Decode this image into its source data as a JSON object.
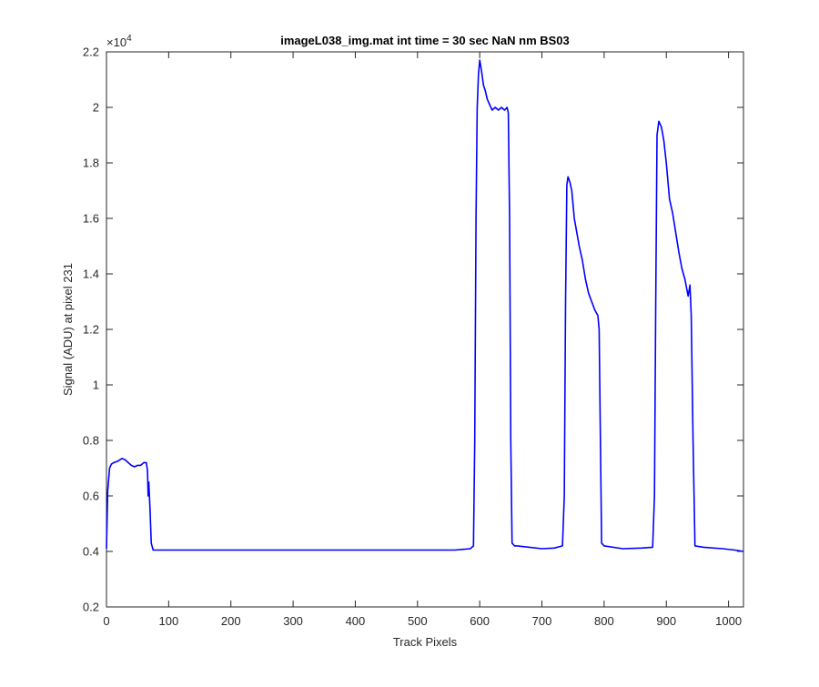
{
  "chart_data": {
    "type": "line",
    "title": "imageL038_img.mat int time = 30 sec  NaN nm BS03",
    "xlabel": "Track Pixels",
    "ylabel": "Signal (ADU) at pixel 231",
    "y_exponent_label": "×10",
    "y_exponent": "4",
    "xlim": [
      0,
      1024
    ],
    "ylim": [
      0.2,
      2.2
    ],
    "x_ticks": [
      0,
      100,
      200,
      300,
      400,
      500,
      600,
      700,
      800,
      900,
      1000
    ],
    "x_tick_labels": [
      "0",
      "100",
      "200",
      "300",
      "400",
      "500",
      "600",
      "700",
      "800",
      "900",
      "1000"
    ],
    "y_ticks": [
      0.2,
      0.4,
      0.6,
      0.8,
      1.0,
      1.2,
      1.4,
      1.6,
      1.8,
      2.0,
      2.2
    ],
    "y_tick_labels": [
      "0.2",
      "0.4",
      "0.6",
      "0.8",
      "1",
      "1.2",
      "1.4",
      "1.6",
      "1.8",
      "2",
      "2.2"
    ],
    "grid": false,
    "line_color": "#0000ff",
    "series": [
      {
        "x": [
          0,
          2,
          5,
          8,
          12,
          18,
          25,
          30,
          35,
          40,
          45,
          50,
          55,
          60,
          64,
          66,
          67,
          68,
          70,
          72,
          75,
          100,
          200,
          300,
          400,
          500,
          560,
          585,
          590,
          592,
          594,
          596,
          598,
          600,
          603,
          606,
          609,
          612,
          616,
          620,
          625,
          630,
          635,
          640,
          644,
          646,
          648,
          650,
          652,
          654,
          656,
          660,
          680,
          700,
          720,
          733,
          736,
          738,
          740,
          742,
          745,
          748,
          752,
          756,
          760,
          765,
          770,
          775,
          780,
          785,
          790,
          792,
          794,
          796,
          800,
          830,
          860,
          878,
          881,
          883,
          885,
          888,
          892,
          896,
          900,
          905,
          910,
          915,
          920,
          925,
          930,
          935,
          938,
          940,
          943,
          946,
          960,
          990,
          1010,
          1024
        ],
        "y": [
          0.41,
          0.62,
          0.7,
          0.715,
          0.72,
          0.725,
          0.735,
          0.73,
          0.72,
          0.71,
          0.705,
          0.71,
          0.71,
          0.72,
          0.72,
          0.69,
          0.6,
          0.65,
          0.55,
          0.43,
          0.405,
          0.405,
          0.405,
          0.405,
          0.405,
          0.405,
          0.405,
          0.41,
          0.42,
          0.8,
          1.6,
          2.0,
          2.12,
          2.17,
          2.13,
          2.08,
          2.06,
          2.03,
          2.01,
          1.99,
          2.0,
          1.99,
          2.0,
          1.99,
          2.0,
          1.98,
          1.6,
          0.8,
          0.43,
          0.425,
          0.42,
          0.42,
          0.415,
          0.41,
          0.412,
          0.42,
          0.6,
          1.3,
          1.72,
          1.75,
          1.73,
          1.7,
          1.6,
          1.55,
          1.5,
          1.45,
          1.38,
          1.33,
          1.3,
          1.27,
          1.25,
          1.2,
          0.8,
          0.43,
          0.42,
          0.41,
          0.412,
          0.415,
          0.6,
          1.3,
          1.9,
          1.95,
          1.93,
          1.88,
          1.8,
          1.67,
          1.62,
          1.55,
          1.48,
          1.42,
          1.38,
          1.32,
          1.36,
          1.25,
          0.8,
          0.42,
          0.415,
          0.41,
          0.405,
          0.4
        ]
      }
    ]
  }
}
